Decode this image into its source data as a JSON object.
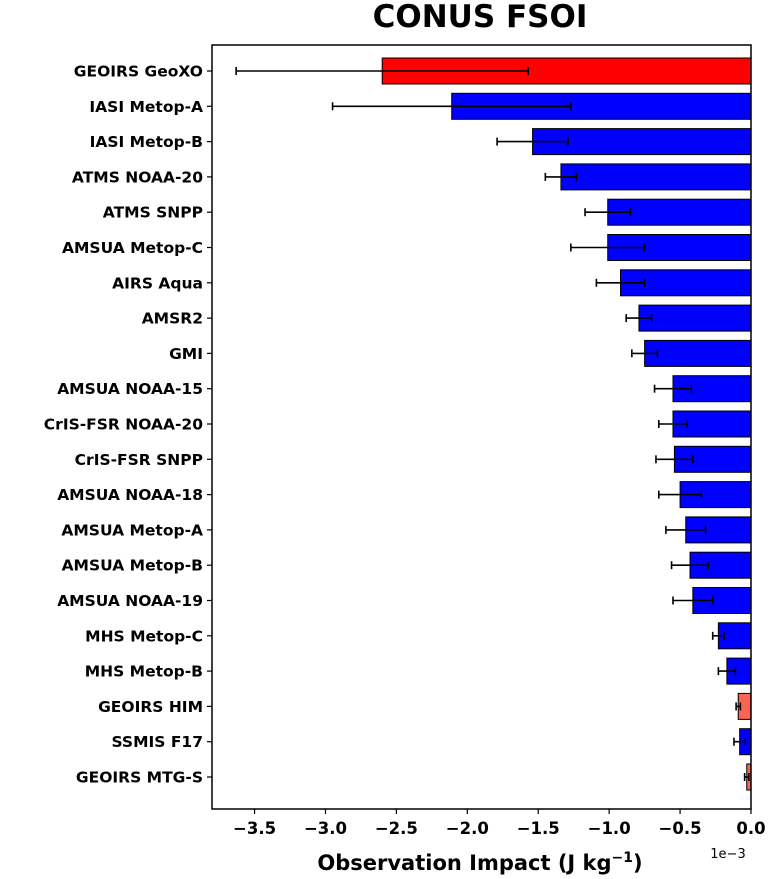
{
  "chart_data": {
    "type": "bar",
    "orientation": "horizontal",
    "title": "CONUS FSOI",
    "xlabel_main": "Observation Impact (J kg",
    "xlabel_sup": "−1",
    "xlabel_close": ")",
    "x_offset_label": "1e−3",
    "xlim": [
      -3.8,
      0.0
    ],
    "xticks": [
      -3.5,
      -3.0,
      -2.5,
      -2.0,
      -1.5,
      -1.0,
      -0.5,
      0.0
    ],
    "xtick_labels": [
      "−3.5",
      "−3.0",
      "−2.5",
      "−2.0",
      "−1.5",
      "−1.0",
      "−0.5",
      "0.0"
    ],
    "grid": false,
    "categories": [
      {
        "label": "GEOIRS GeoXO",
        "value": -2.6,
        "err": 1.03,
        "color": "#ff0000"
      },
      {
        "label": "IASI Metop-A",
        "value": -2.11,
        "err": 0.84,
        "color": "#0000ff"
      },
      {
        "label": "IASI Metop-B",
        "value": -1.54,
        "err": 0.25,
        "color": "#0000ff"
      },
      {
        "label": "ATMS NOAA-20",
        "value": -1.34,
        "err": 0.11,
        "color": "#0000ff"
      },
      {
        "label": "ATMS SNPP",
        "value": -1.01,
        "err": 0.16,
        "color": "#0000ff"
      },
      {
        "label": "AMSUA Metop-C",
        "value": -1.01,
        "err": 0.26,
        "color": "#0000ff"
      },
      {
        "label": "AIRS Aqua",
        "value": -0.92,
        "err": 0.17,
        "color": "#0000ff"
      },
      {
        "label": "AMSR2",
        "value": -0.79,
        "err": 0.09,
        "color": "#0000ff"
      },
      {
        "label": "GMI",
        "value": -0.75,
        "err": 0.09,
        "color": "#0000ff"
      },
      {
        "label": "AMSUA NOAA-15",
        "value": -0.55,
        "err": 0.13,
        "color": "#0000ff"
      },
      {
        "label": "CrIS-FSR NOAA-20",
        "value": -0.55,
        "err": 0.1,
        "color": "#0000ff"
      },
      {
        "label": "CrIS-FSR SNPP",
        "value": -0.54,
        "err": 0.13,
        "color": "#0000ff"
      },
      {
        "label": "AMSUA NOAA-18",
        "value": -0.5,
        "err": 0.15,
        "color": "#0000ff"
      },
      {
        "label": "AMSUA Metop-A",
        "value": -0.46,
        "err": 0.14,
        "color": "#0000ff"
      },
      {
        "label": "AMSUA Metop-B",
        "value": -0.43,
        "err": 0.13,
        "color": "#0000ff"
      },
      {
        "label": "AMSUA NOAA-19",
        "value": -0.41,
        "err": 0.14,
        "color": "#0000ff"
      },
      {
        "label": "MHS Metop-C",
        "value": -0.23,
        "err": 0.04,
        "color": "#0000ff"
      },
      {
        "label": "MHS Metop-B",
        "value": -0.17,
        "err": 0.06,
        "color": "#0000ff"
      },
      {
        "label": "GEOIRS HIM",
        "value": -0.09,
        "err": 0.015,
        "color": "#fa6450"
      },
      {
        "label": "SSMIS F17",
        "value": -0.08,
        "err": 0.04,
        "color": "#0000ff"
      },
      {
        "label": "GEOIRS MTG-S",
        "value": -0.03,
        "err": 0.015,
        "color": "#fa6450"
      }
    ]
  }
}
